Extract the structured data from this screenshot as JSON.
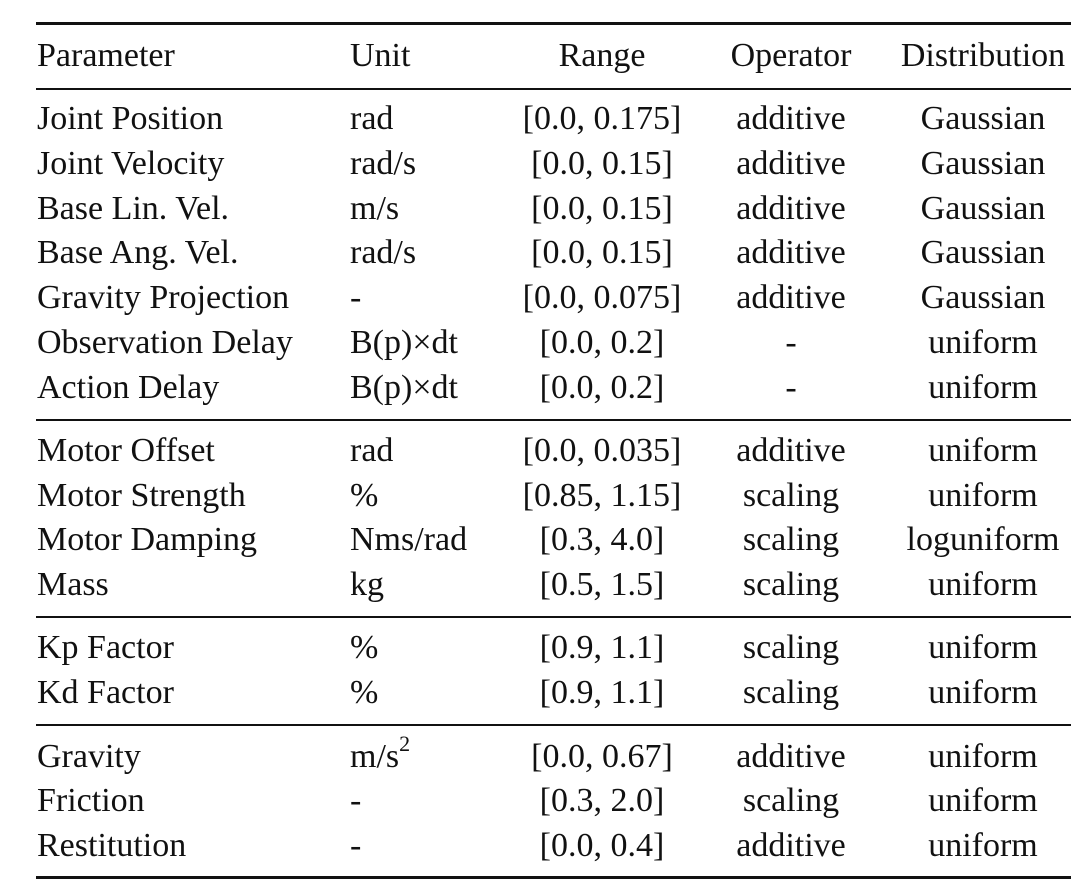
{
  "headers": [
    "Parameter",
    "Unit",
    "Range",
    "Operator",
    "Distribution"
  ],
  "groups": [
    {
      "rows": [
        [
          "Joint Position",
          "rad",
          "[0.0, 0.175]",
          "additive",
          "Gaussian"
        ],
        [
          "Joint Velocity",
          "rad/s",
          "[0.0, 0.15]",
          "additive",
          "Gaussian"
        ],
        [
          "Base Lin. Vel.",
          "m/s",
          "[0.0, 0.15]",
          "additive",
          "Gaussian"
        ],
        [
          "Base Ang. Vel.",
          "rad/s",
          "[0.0, 0.15]",
          "additive",
          "Gaussian"
        ],
        [
          "Gravity Projection",
          "-",
          "[0.0, 0.075]",
          "additive",
          "Gaussian"
        ],
        [
          "Observation Delay",
          "B(p)×dt",
          "[0.0, 0.2]",
          "-",
          "uniform"
        ],
        [
          "Action Delay",
          "B(p)×dt",
          "[0.0, 0.2]",
          "-",
          "uniform"
        ]
      ]
    },
    {
      "rows": [
        [
          "Motor Offset",
          "rad",
          "[0.0, 0.035]",
          "additive",
          "uniform"
        ],
        [
          "Motor Strength",
          "%",
          "[0.85, 1.15]",
          "scaling",
          "uniform"
        ],
        [
          "Motor Damping",
          "Nms/rad",
          "[0.3, 4.0]",
          "scaling",
          "loguniform"
        ],
        [
          "Mass",
          "kg",
          "[0.5, 1.5]",
          "scaling",
          "uniform"
        ]
      ]
    },
    {
      "rows": [
        [
          "Kp Factor",
          "%",
          "[0.9, 1.1]",
          "scaling",
          "uniform"
        ],
        [
          "Kd Factor",
          "%",
          "[0.9, 1.1]",
          "scaling",
          "uniform"
        ]
      ]
    },
    {
      "rows": [
        [
          "Gravity",
          "m/s",
          "[0.0, 0.67]",
          "additive",
          "uniform"
        ],
        [
          "Friction",
          "-",
          "[0.3, 2.0]",
          "scaling",
          "uniform"
        ],
        [
          "Restitution",
          "-",
          "[0.0, 0.4]",
          "additive",
          "uniform"
        ]
      ]
    }
  ],
  "gravity_unit_exponent": "2"
}
